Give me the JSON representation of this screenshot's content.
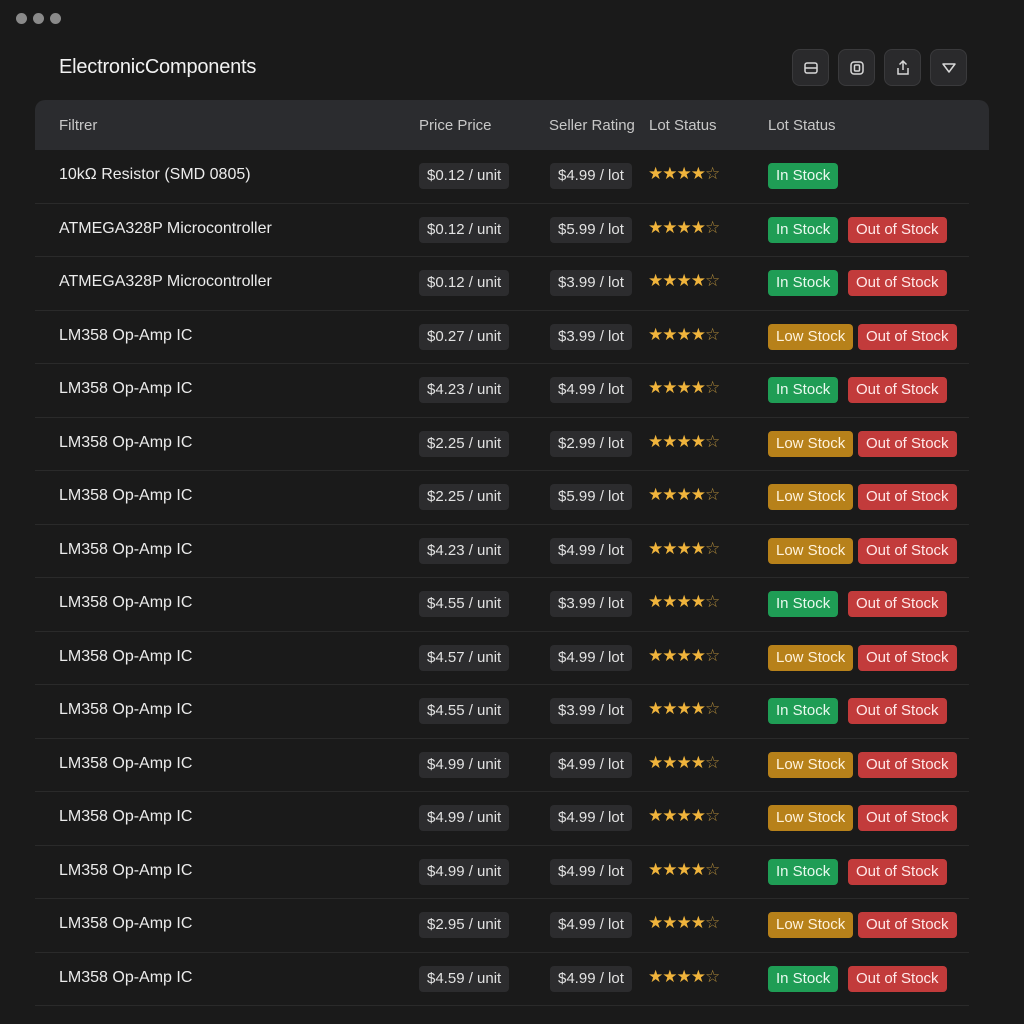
{
  "app": {
    "title": "ElectronicComponents"
  },
  "toolbar": {
    "buttons": [
      {
        "icon": "layout-icon"
      },
      {
        "icon": "panel-icon"
      },
      {
        "icon": "share-icon"
      },
      {
        "icon": "filter-icon"
      }
    ]
  },
  "table": {
    "headers": [
      "Filtrer",
      "Price Price",
      "Seller Rating",
      "Lot Status",
      "Lot Status"
    ],
    "rating_stars": "★★★★",
    "rating_empty": "☆",
    "rows": [
      {
        "name": "10kΩ Resistor (SMD 0805)",
        "price": "$0.12 / unit",
        "lot": "$4.99 / lot",
        "status1": "In Stock",
        "status2": ""
      },
      {
        "name": "ATMEGA328P Microcontroller",
        "price": "$0.12 / unit",
        "lot": "$5.99 / lot",
        "status1": "In Stock",
        "status2": "Out of Stock"
      },
      {
        "name": "ATMEGA328P Microcontroller",
        "price": "$0.12 / unit",
        "lot": "$3.99 / lot",
        "status1": "In Stock",
        "status2": "Out of Stock"
      },
      {
        "name": "LM358 Op-Amp IC",
        "price": "$0.27 / unit",
        "lot": "$3.99 / lot",
        "status1": "Low Stock",
        "status2": "Out of Stock"
      },
      {
        "name": "LM358 Op-Amp IC",
        "price": "$4.23 / unit",
        "lot": "$4.99 / lot",
        "status1": "In Stock",
        "status2": "Out of Stock"
      },
      {
        "name": "LM358 Op-Amp IC",
        "price": "$2.25 / unit",
        "lot": "$2.99 / lot",
        "status1": "Low Stock",
        "status2": "Out of Stock"
      },
      {
        "name": "LM358 Op-Amp IC",
        "price": "$2.25 / unit",
        "lot": "$5.99 / lot",
        "status1": "Low Stock",
        "status2": "Out of Stock"
      },
      {
        "name": "LM358 Op-Amp IC",
        "price": "$4.23 / unit",
        "lot": "$4.99 / lot",
        "status1": "Low Stock",
        "status2": "Out of Stock"
      },
      {
        "name": "LM358 Op-Amp IC",
        "price": "$4.55 / unit",
        "lot": "$3.99 / lot",
        "status1": "In Stock",
        "status2": "Out of Stock"
      },
      {
        "name": "LM358 Op-Amp IC",
        "price": "$4.57 / unit",
        "lot": "$4.99 / lot",
        "status1": "Low Stock",
        "status2": "Out of Stock"
      },
      {
        "name": "LM358 Op-Amp IC",
        "price": "$4.55 / unit",
        "lot": "$3.99 / lot",
        "status1": "In Stock",
        "status2": "Out of Stock"
      },
      {
        "name": "LM358 Op-Amp IC",
        "price": "$4.99 / unit",
        "lot": "$4.99 / lot",
        "status1": "Low Stock",
        "status2": "Out of Stock"
      },
      {
        "name": "LM358 Op-Amp IC",
        "price": "$4.99 / unit",
        "lot": "$4.99 / lot",
        "status1": "Low Stock",
        "status2": "Out of Stock"
      },
      {
        "name": "LM358 Op-Amp IC",
        "price": "$4.99 / unit",
        "lot": "$4.99 / lot",
        "status1": "In Stock",
        "status2": "Out of Stock"
      },
      {
        "name": "LM358 Op-Amp IC",
        "price": "$2.95 / unit",
        "lot": "$4.99 / lot",
        "status1": "Low Stock",
        "status2": "Out of Stock"
      },
      {
        "name": "LM358 Op-Amp IC",
        "price": "$4.59 / unit",
        "lot": "$4.99 / lot",
        "status1": "In Stock",
        "status2": "Out of Stock"
      }
    ]
  },
  "colors": {
    "in_stock": "#1f9d55",
    "low_stock": "#b7811a",
    "out_of_stock": "#c23b3b",
    "star": "#f0b43c"
  }
}
